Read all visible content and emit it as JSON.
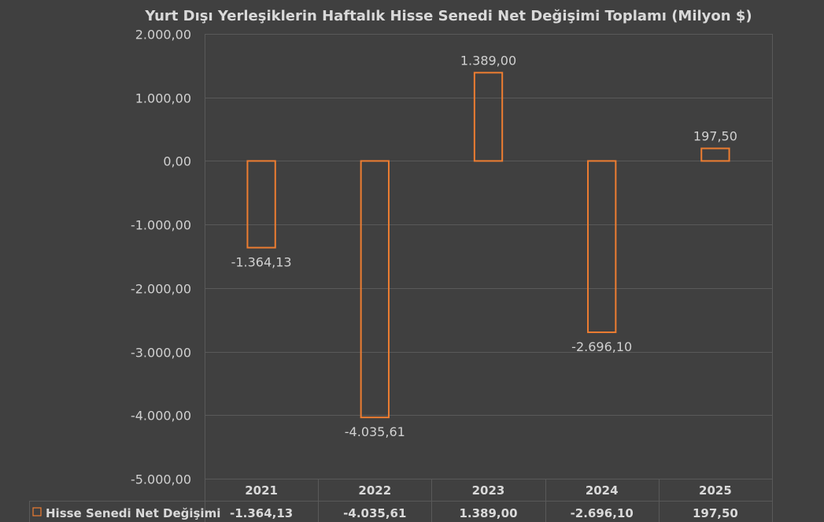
{
  "chart_data": {
    "type": "bar",
    "title": "Yurt Dışı Yerleşiklerin Haftalık Hisse Senedi Net Değişimi Toplamı (Milyon $)",
    "categories": [
      "2021",
      "2022",
      "2023",
      "2024",
      "2025"
    ],
    "series": [
      {
        "name": "Hisse Senedi Net Değişimi",
        "values": [
          -1364.13,
          -4035.61,
          1389.0,
          -2696.1,
          197.5
        ],
        "labels": [
          "-1.364,13",
          "-4.035,61",
          "1.389,00",
          "-2.696,10",
          "197,50"
        ],
        "color": "#ed7d31",
        "fill": "none"
      }
    ],
    "ylim": [
      -5000,
      2000
    ],
    "yticks": [
      2000,
      1000,
      0,
      -1000,
      -2000,
      -3000,
      -4000,
      -5000
    ],
    "ytick_labels": [
      "2.000,00",
      "1.000,00",
      "0,00",
      "-1.000,00",
      "-2.000,00",
      "-3.000,00",
      "-4.000,00",
      "-5.000,00"
    ],
    "grid": true,
    "data_table": true,
    "legend": "in data table",
    "background": "#404040",
    "gridline_color": "#595959",
    "text_color": "#d9d9d9"
  }
}
